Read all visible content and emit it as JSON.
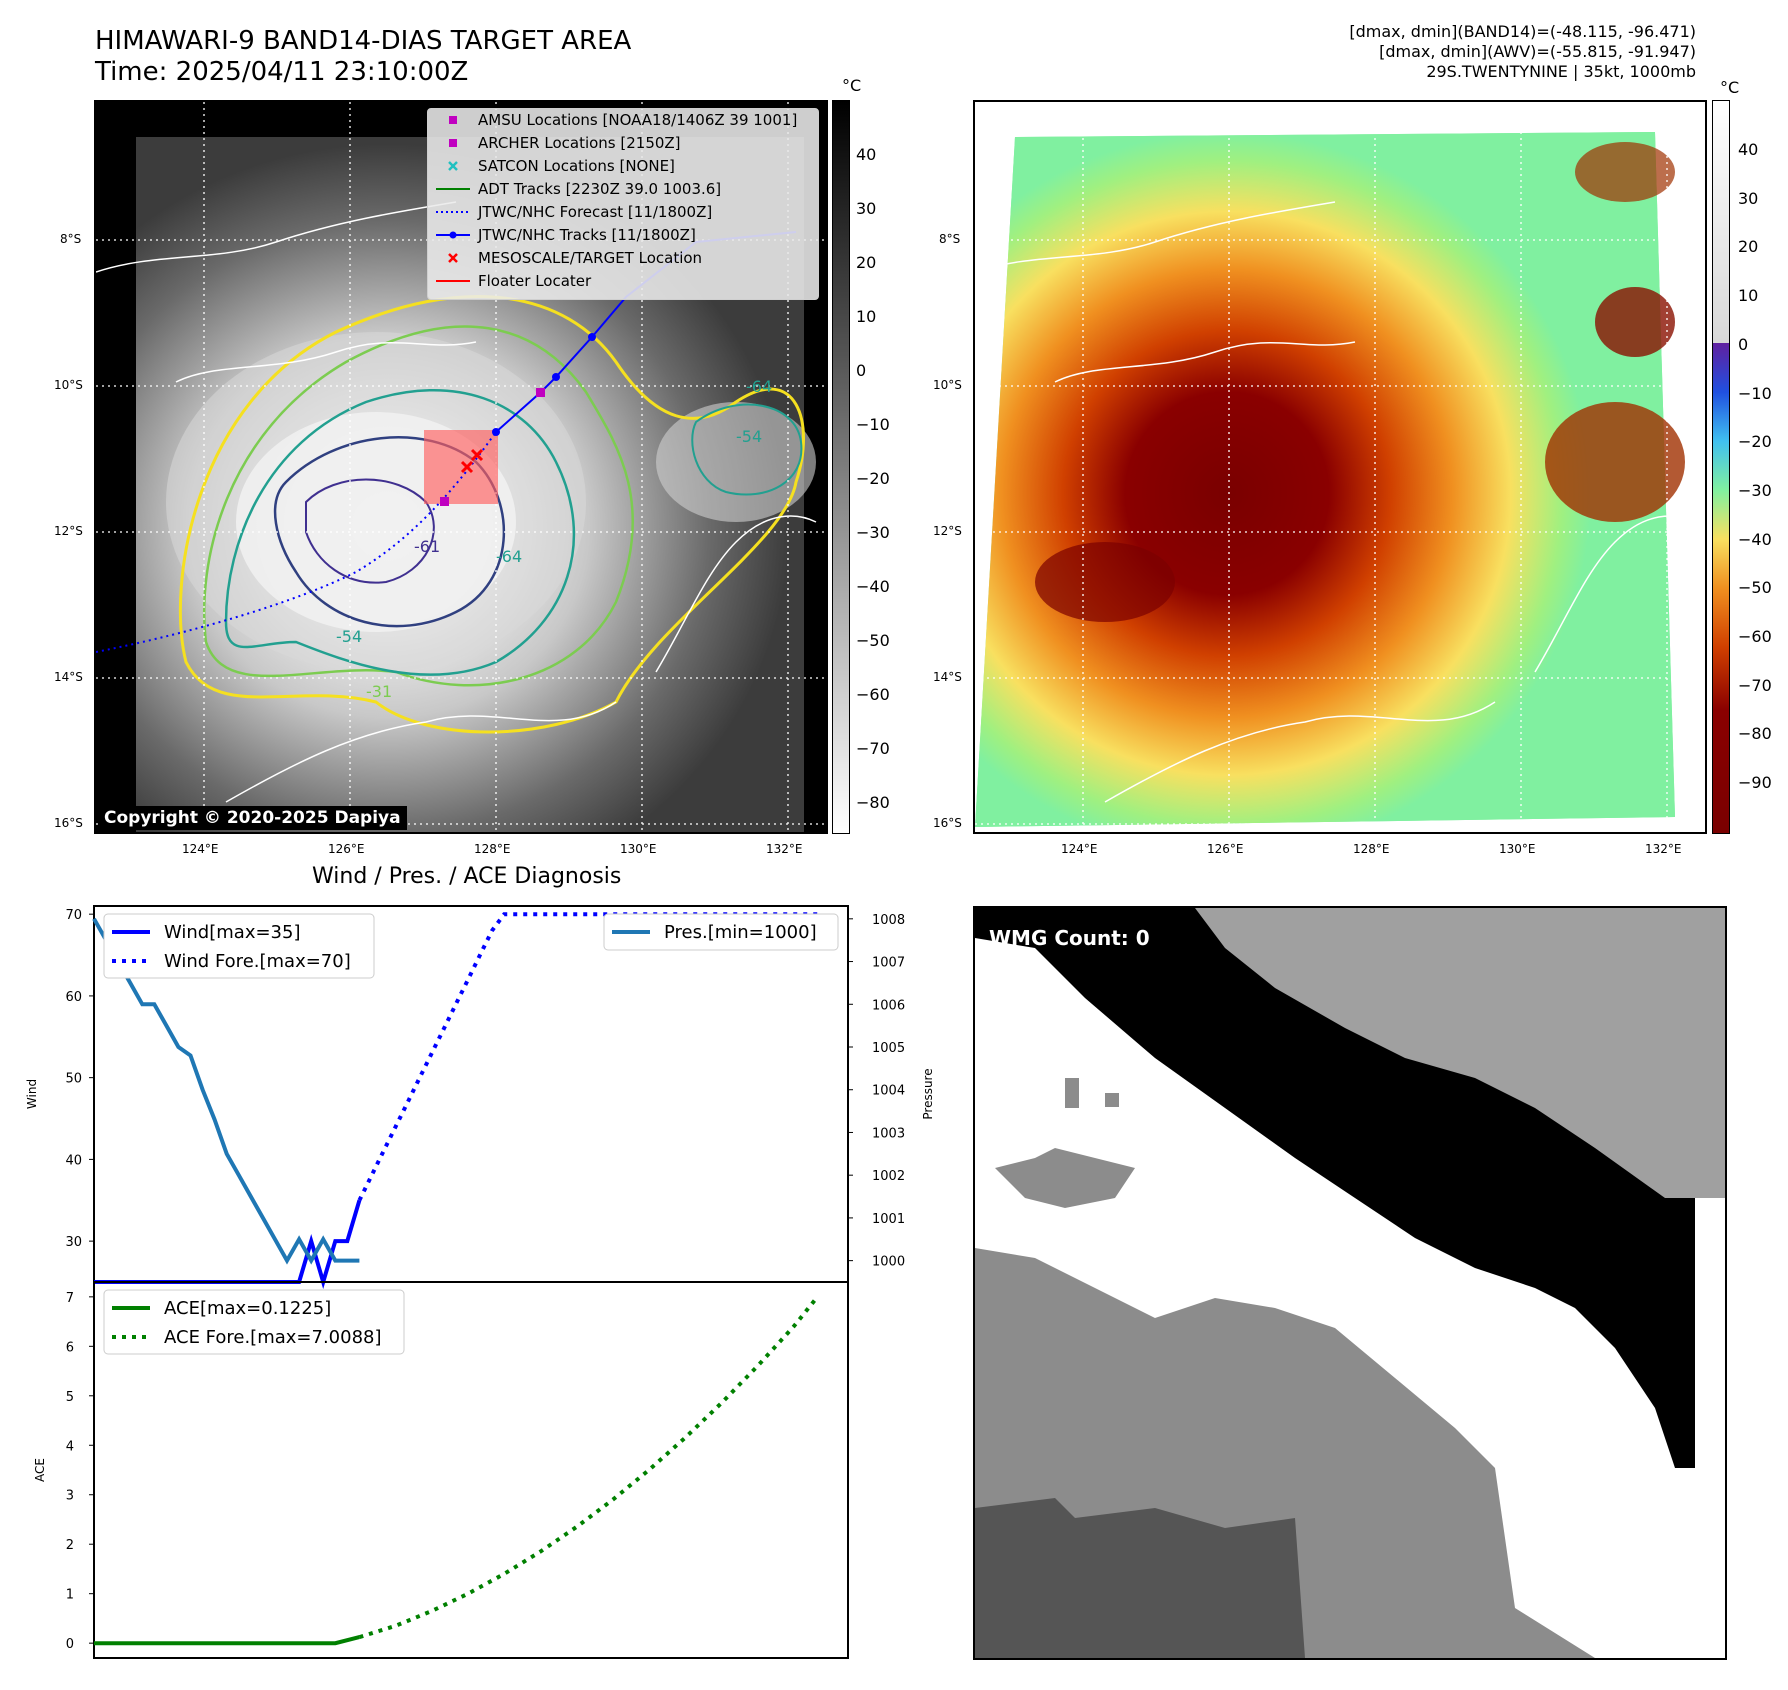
{
  "header": {
    "title_line1": "HIMAWARI-9 BAND14-DIAS TARGET AREA",
    "title_line2": "Time: 2025/04/11 23:10:00Z",
    "right_line1": "[dmax, dmin](BAND14)=(-48.115, -96.471)",
    "right_line2": "[dmax, dmin](AWV)=(-55.815, -91.947)",
    "right_line3": "29S.TWENTYNINE | 35kt, 1000mb"
  },
  "map": {
    "lat_labels": [
      "8°S",
      "10°S",
      "12°S",
      "14°S",
      "16°S"
    ],
    "lon_labels": [
      "124°E",
      "126°E",
      "128°E",
      "130°E",
      "132°E"
    ],
    "contour_labels": [
      "-64",
      "-54",
      "-31",
      "-64",
      "-54",
      "-61"
    ],
    "copyright": "Copyright © 2020-2025 Dapiya"
  },
  "legend": {
    "items": [
      {
        "label": "AMSU Locations [NOAA18/1406Z 39 1001]",
        "color": "#c000c0",
        "symbol": "square"
      },
      {
        "label": "ARCHER Locations [2150Z]",
        "color": "#c000c0",
        "symbol": "square"
      },
      {
        "label": "SATCON Locations [NONE]",
        "color": "#20c0c0",
        "symbol": "x"
      },
      {
        "label": "ADT Tracks [2230Z 39.0 1003.6]",
        "color": "#008000",
        "symbol": "line"
      },
      {
        "label": "JTWC/NHC Forecast [11/1800Z]",
        "color": "#0000ff",
        "symbol": "dotted"
      },
      {
        "label": "JTWC/NHC Tracks [11/1800Z]",
        "color": "#0000ff",
        "symbol": "line-dot"
      },
      {
        "label": "MESOSCALE/TARGET Location",
        "color": "#ff0000",
        "symbol": "x"
      },
      {
        "label": "Floater Locater",
        "color": "#ff0000",
        "symbol": "line"
      }
    ]
  },
  "colorbar_left": {
    "unit": "°C",
    "ticks": [
      "40",
      "30",
      "20",
      "10",
      "0",
      "−10",
      "−20",
      "−30",
      "−40",
      "−50",
      "−60",
      "−70",
      "−80"
    ]
  },
  "colorbar_right": {
    "unit": "°C",
    "ticks": [
      "40",
      "30",
      "20",
      "10",
      "0",
      "−10",
      "−20",
      "−30",
      "−40",
      "−50",
      "−60",
      "−70",
      "−80",
      "−90"
    ]
  },
  "wmg": {
    "label": "WMG Count: 0"
  },
  "chart_data": [
    {
      "type": "line",
      "title": "Wind / Pres. / ACE Diagnosis",
      "ylabel": "Wind",
      "y2label": "Pressure",
      "ylim": [
        25,
        71
      ],
      "y2lim": [
        999.5,
        1008.3
      ],
      "yticks": [
        30,
        40,
        50,
        60,
        70
      ],
      "y2ticks": [
        1000,
        1001,
        1002,
        1003,
        1004,
        1005,
        1006,
        1007,
        1008
      ],
      "legend_left": [
        "Wind[max=35]",
        "Wind Fore.[max=70]"
      ],
      "legend_right": [
        "Pres.[min=1000]"
      ],
      "series": [
        {
          "name": "Wind",
          "axis": "left",
          "color": "#0000ff",
          "style": "solid",
          "x": [
            0,
            6,
            12,
            18,
            24,
            30,
            36,
            42,
            48,
            54,
            60,
            66,
            72,
            78,
            84,
            90,
            96,
            102,
            108,
            114,
            120,
            126,
            132
          ],
          "values": [
            25,
            25,
            25,
            25,
            25,
            25,
            25,
            25,
            25,
            25,
            25,
            25,
            25,
            25,
            25,
            25,
            25,
            25,
            30,
            25,
            30,
            30,
            35
          ]
        },
        {
          "name": "Wind Fore.",
          "axis": "left",
          "color": "#0000ff",
          "style": "dotted",
          "x": [
            132,
            138,
            144,
            150,
            156,
            162,
            168,
            174,
            180,
            186,
            192,
            198,
            204,
            210,
            216,
            222,
            228,
            234,
            240,
            246,
            252,
            258,
            264,
            270,
            276,
            282,
            288,
            294,
            300,
            306,
            312,
            318,
            324,
            330,
            336,
            342,
            348,
            354,
            360
          ],
          "values": [
            35,
            38,
            41,
            44,
            47,
            50,
            53,
            56,
            59,
            62,
            65,
            68,
            70,
            70,
            70,
            70,
            70,
            70,
            70,
            70,
            70,
            70,
            70,
            70,
            70,
            70,
            70,
            70,
            70,
            70,
            70,
            70,
            70,
            70,
            70,
            70,
            70,
            70,
            70
          ]
        },
        {
          "name": "Pres.",
          "axis": "right",
          "color": "#1f77b4",
          "style": "solid",
          "x": [
            0,
            6,
            12,
            18,
            24,
            30,
            36,
            42,
            48,
            54,
            60,
            66,
            72,
            78,
            84,
            90,
            96,
            102,
            108,
            114,
            120,
            126,
            132
          ],
          "values": [
            1008,
            1007.5,
            1007,
            1006.5,
            1006,
            1006,
            1005.5,
            1005,
            1004.8,
            1004,
            1003.3,
            1002.5,
            1002,
            1001.5,
            1001,
            1000.5,
            1000,
            1000.5,
            1000,
            1000.5,
            1000,
            1000,
            1000
          ]
        }
      ]
    },
    {
      "type": "line",
      "ylabel": "ACE",
      "ylim": [
        -0.3,
        7.3
      ],
      "yticks": [
        0,
        1,
        2,
        3,
        4,
        5,
        6,
        7
      ],
      "legend": [
        "ACE[max=0.1225]",
        "ACE Fore.[max=7.0088]"
      ],
      "series": [
        {
          "name": "ACE",
          "color": "#008000",
          "style": "solid",
          "x": [
            0,
            24,
            48,
            72,
            96,
            120,
            132
          ],
          "values": [
            0,
            0,
            0,
            0,
            0,
            0,
            0.1225
          ]
        },
        {
          "name": "ACE Fore.",
          "color": "#008000",
          "style": "dotted",
          "x": [
            132,
            150,
            168,
            186,
            204,
            222,
            240,
            258,
            276,
            294,
            312,
            330,
            348,
            360
          ],
          "values": [
            0.1225,
            0.35,
            0.65,
            1.0,
            1.4,
            1.85,
            2.35,
            2.9,
            3.5,
            4.15,
            4.85,
            5.6,
            6.4,
            7.0088
          ]
        }
      ]
    }
  ]
}
